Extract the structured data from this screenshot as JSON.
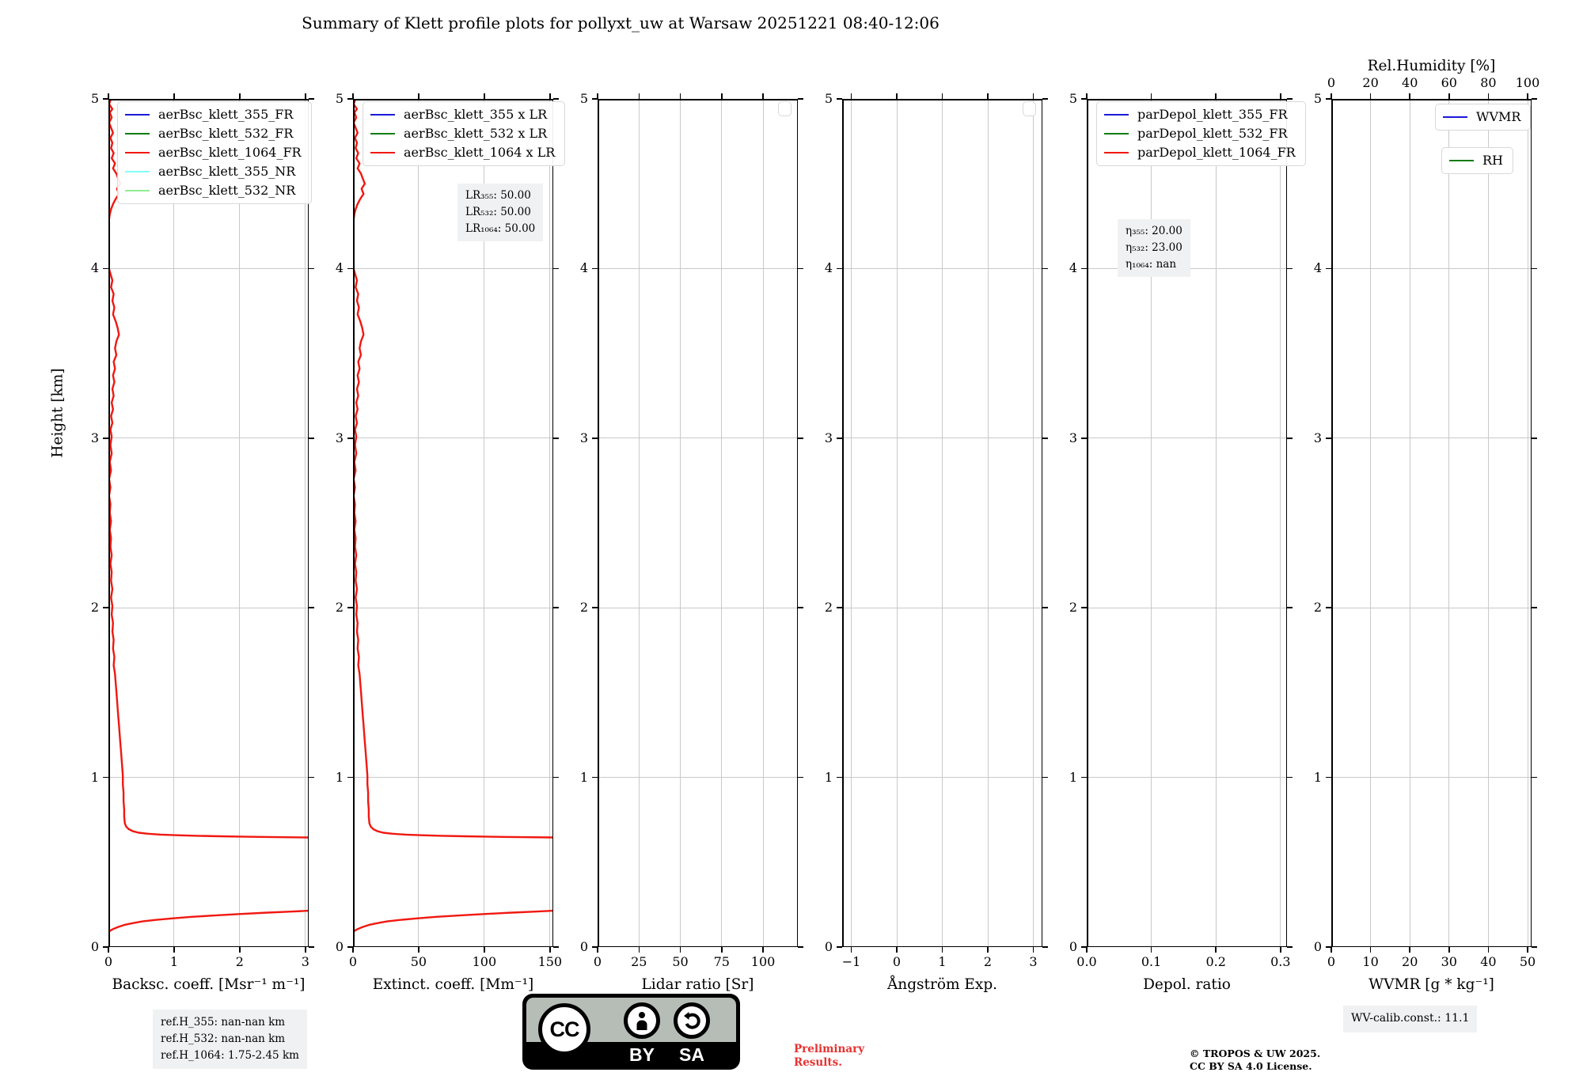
{
  "title": "Summary of Klett profile plots for pollyxt_uw at Warsaw 20251221 08:40-12:06",
  "y_axis": {
    "label": "Height [km]",
    "lim": [
      0,
      5
    ],
    "ticks": [
      0,
      1,
      2,
      3,
      4,
      5
    ]
  },
  "profiles": {
    "aerBsc_klett_1064_FR": {
      "units": "Msr-1 m-1",
      "upper": [
        [
          0.04,
          5.0
        ],
        [
          0.01,
          4.97
        ],
        [
          0.06,
          4.94
        ],
        [
          0.02,
          4.92
        ],
        [
          0.05,
          4.89
        ],
        [
          0.01,
          4.86
        ],
        [
          0.04,
          4.83
        ],
        [
          0.07,
          4.8
        ],
        [
          0.03,
          4.77
        ],
        [
          0.06,
          4.74
        ],
        [
          0.04,
          4.71
        ],
        [
          0.08,
          4.68
        ],
        [
          0.05,
          4.65
        ],
        [
          0.1,
          4.62
        ],
        [
          0.07,
          4.59
        ],
        [
          0.12,
          4.56
        ],
        [
          0.15,
          4.53
        ],
        [
          0.18,
          4.5
        ],
        [
          0.13,
          4.47
        ],
        [
          0.16,
          4.44
        ],
        [
          0.11,
          4.41
        ],
        [
          0.07,
          4.38
        ],
        [
          0.04,
          4.35
        ],
        [
          0.02,
          4.32
        ],
        [
          0.01,
          4.29
        ],
        [
          0.0,
          4.25
        ],
        [
          0.01,
          4.19
        ],
        [
          0.0,
          4.13
        ],
        [
          0.01,
          4.07
        ],
        [
          0.0,
          4.01
        ],
        [
          0.03,
          3.97
        ],
        [
          0.06,
          3.93
        ],
        [
          0.04,
          3.89
        ],
        [
          0.08,
          3.85
        ],
        [
          0.06,
          3.81
        ],
        [
          0.09,
          3.77
        ],
        [
          0.07,
          3.73
        ],
        [
          0.11,
          3.69
        ],
        [
          0.14,
          3.65
        ],
        [
          0.16,
          3.61
        ],
        [
          0.12,
          3.57
        ],
        [
          0.1,
          3.53
        ],
        [
          0.12,
          3.49
        ],
        [
          0.08,
          3.45
        ],
        [
          0.1,
          3.41
        ],
        [
          0.07,
          3.37
        ],
        [
          0.09,
          3.33
        ],
        [
          0.06,
          3.29
        ],
        [
          0.08,
          3.25
        ],
        [
          0.05,
          3.21
        ],
        [
          0.07,
          3.17
        ],
        [
          0.04,
          3.13
        ],
        [
          0.06,
          3.09
        ],
        [
          0.03,
          3.05
        ],
        [
          0.05,
          3.01
        ],
        [
          0.03,
          2.96
        ],
        [
          0.05,
          2.91
        ],
        [
          0.02,
          2.86
        ],
        [
          0.04,
          2.81
        ],
        [
          0.01,
          2.76
        ],
        [
          0.03,
          2.71
        ],
        [
          0.01,
          2.66
        ],
        [
          0.03,
          2.61
        ],
        [
          0.02,
          2.56
        ],
        [
          0.04,
          2.51
        ],
        [
          0.02,
          2.46
        ],
        [
          0.04,
          2.41
        ],
        [
          0.03,
          2.36
        ],
        [
          0.05,
          2.31
        ],
        [
          0.03,
          2.26
        ],
        [
          0.05,
          2.21
        ],
        [
          0.04,
          2.16
        ],
        [
          0.06,
          2.11
        ],
        [
          0.04,
          2.06
        ],
        [
          0.06,
          2.01
        ],
        [
          0.05,
          1.96
        ],
        [
          0.07,
          1.91
        ],
        [
          0.06,
          1.86
        ],
        [
          0.08,
          1.81
        ],
        [
          0.07,
          1.76
        ],
        [
          0.09,
          1.71
        ],
        [
          0.08,
          1.66
        ],
        [
          0.1,
          1.61
        ],
        [
          0.11,
          1.56
        ],
        [
          0.12,
          1.51
        ],
        [
          0.13,
          1.46
        ],
        [
          0.14,
          1.41
        ],
        [
          0.15,
          1.36
        ],
        [
          0.16,
          1.31
        ],
        [
          0.17,
          1.26
        ],
        [
          0.18,
          1.21
        ],
        [
          0.19,
          1.16
        ],
        [
          0.2,
          1.11
        ],
        [
          0.21,
          1.06
        ],
        [
          0.22,
          1.01
        ],
        [
          0.22,
          0.96
        ],
        [
          0.23,
          0.91
        ],
        [
          0.23,
          0.86
        ],
        [
          0.24,
          0.81
        ],
        [
          0.24,
          0.77
        ],
        [
          0.25,
          0.73
        ],
        [
          0.27,
          0.71
        ],
        [
          0.31,
          0.695
        ],
        [
          0.37,
          0.683
        ],
        [
          0.46,
          0.674
        ],
        [
          0.6,
          0.668
        ],
        [
          0.8,
          0.663
        ],
        [
          1.05,
          0.659
        ],
        [
          1.35,
          0.656
        ],
        [
          1.7,
          0.653
        ],
        [
          2.1,
          0.65
        ],
        [
          2.55,
          0.648
        ],
        [
          3.05,
          0.646
        ]
      ],
      "lower": [
        [
          0.0,
          0.09
        ],
        [
          0.06,
          0.104
        ],
        [
          0.14,
          0.117
        ],
        [
          0.24,
          0.13
        ],
        [
          0.37,
          0.141
        ],
        [
          0.52,
          0.151
        ],
        [
          0.72,
          0.16
        ],
        [
          0.97,
          0.169
        ],
        [
          1.27,
          0.178
        ],
        [
          1.62,
          0.186
        ],
        [
          2.02,
          0.195
        ],
        [
          2.42,
          0.203
        ],
        [
          2.78,
          0.209
        ],
        [
          3.05,
          0.214
        ]
      ]
    }
  },
  "chart_data": [
    {
      "name": "subplot-backscatter",
      "type": "line",
      "xlabel": "Backsc. coeff. [Msr⁻¹ m⁻¹]",
      "xlim": [
        0,
        3.05
      ],
      "xticks": [
        "0",
        "1",
        "2",
        "3"
      ],
      "xtick_vals": [
        0,
        1,
        2,
        3
      ],
      "ylim": [
        0,
        5
      ],
      "grid": true,
      "legends": [
        {
          "x": 11,
          "y": 3,
          "entries": [
            {
              "label": "aerBsc_klett_355_FR",
              "color": "#1a1ad9"
            },
            {
              "label": "aerBsc_klett_532_FR",
              "color": "#0f7d0f"
            },
            {
              "label": "aerBsc_klett_1064_FR",
              "color": "#f01810"
            },
            {
              "label": "aerBsc_klett_355_NR",
              "color": "#84ffff"
            },
            {
              "label": "aerBsc_klett_532_NR",
              "color": "#90ee90"
            }
          ]
        }
      ],
      "annotations": [],
      "series": [
        {
          "name": "aerBsc_klett_1064_FR",
          "color": "#f01810",
          "source": "aerBsc_klett_1064_FR",
          "scale": 1
        }
      ]
    },
    {
      "name": "subplot-extinction",
      "type": "line",
      "xlabel": "Extinct. coeff. [Mm⁻¹]",
      "xlim": [
        0,
        152.5
      ],
      "xticks": [
        "0",
        "50",
        "100",
        "150"
      ],
      "xtick_vals": [
        0,
        50,
        100,
        150
      ],
      "ylim": [
        0,
        5
      ],
      "grid": true,
      "legends": [
        {
          "x": 12,
          "y": 3,
          "entries": [
            {
              "label": "aerBsc_klett_355 x LR",
              "color": "#1a1ad9"
            },
            {
              "label": "aerBsc_klett_532 x LR",
              "color": "#0f7d0f"
            },
            {
              "label": "aerBsc_klett_1064 x LR",
              "color": "#f01810"
            }
          ]
        }
      ],
      "annotations": [
        {
          "x": 132,
          "y": 107,
          "lines": [
            "LR₃₅₅: 50.00",
            "LR₅₃₂: 50.00",
            "LR₁₀₆₄: 50.00"
          ]
        }
      ],
      "series": [
        {
          "name": "aerBsc_klett_1064 x LR",
          "color": "#f01810",
          "source": "aerBsc_klett_1064_FR",
          "scale": 50
        }
      ]
    },
    {
      "name": "subplot-lidar-ratio",
      "type": "line",
      "xlabel": "Lidar ratio [Sr]",
      "xlim": [
        0,
        121
      ],
      "xticks": [
        "0",
        "25",
        "50",
        "75",
        "100"
      ],
      "xtick_vals": [
        0,
        25,
        50,
        75,
        100
      ],
      "ylim": [
        0,
        5
      ],
      "grid": true,
      "legends": [
        {
          "x": 228,
          "y": 3,
          "w": 15,
          "h": 17,
          "entries": []
        }
      ],
      "annotations": [],
      "series": []
    },
    {
      "name": "subplot-angstrom",
      "type": "line",
      "xlabel": "Ångström Exp.",
      "xlim": [
        -1.2,
        3.2
      ],
      "xticks": [
        "−1",
        "0",
        "1",
        "2",
        "3"
      ],
      "xtick_vals": [
        -1,
        0,
        1,
        2,
        3
      ],
      "ylim": [
        0,
        5
      ],
      "grid": true,
      "legends": [
        {
          "x": 228,
          "y": 3,
          "w": 15,
          "h": 17,
          "entries": []
        }
      ],
      "annotations": [],
      "series": []
    },
    {
      "name": "subplot-depol",
      "type": "line",
      "xlabel": "Depol. ratio",
      "xlim": [
        0,
        0.31
      ],
      "xticks": [
        "0.0",
        "0.1",
        "0.2",
        "0.3"
      ],
      "xtick_vals": [
        0,
        0.1,
        0.2,
        0.3
      ],
      "ylim": [
        0,
        5
      ],
      "grid": true,
      "legends": [
        {
          "x": 12,
          "y": 3,
          "entries": [
            {
              "label": "parDepol_klett_355_FR",
              "color": "#1a1ad9"
            },
            {
              "label": "parDepol_klett_532_FR",
              "color": "#0f7d0f"
            },
            {
              "label": "parDepol_klett_1064_FR",
              "color": "#f01810"
            }
          ]
        }
      ],
      "annotations": [
        {
          "x": 39,
          "y": 152,
          "lines": [
            "η₃₅₅: 20.00",
            "η₅₃₂: 23.00",
            "η₁₀₆₄: nan"
          ]
        }
      ],
      "series": []
    },
    {
      "name": "subplot-wvmr",
      "type": "line",
      "xlabel": "WVMR [g * kg⁻¹]",
      "xlim": [
        0,
        51
      ],
      "xticks": [
        "0",
        "10",
        "20",
        "30",
        "40",
        "50"
      ],
      "xtick_vals": [
        0,
        10,
        20,
        30,
        40,
        50
      ],
      "ylim": [
        0,
        5
      ],
      "grid": true,
      "top_axis": {
        "label": "Rel.Humidity [%]",
        "xlim": [
          0,
          102
        ],
        "ticks": [
          "0",
          "20",
          "40",
          "60",
          "80",
          "100"
        ],
        "tick_vals": [
          0,
          20,
          40,
          60,
          80,
          100
        ]
      },
      "legends": [
        {
          "x": 131,
          "y": 6,
          "entries": [
            {
              "label": "WVMR",
              "color": "#1a1ad9"
            }
          ]
        },
        {
          "x": 139,
          "y": 61,
          "entries": [
            {
              "label": "RH",
              "color": "#0f7d0f"
            }
          ]
        }
      ],
      "annotations": [],
      "series": []
    }
  ],
  "footer": {
    "ref_h_lines": [
      "ref.H_355: nan-nan km",
      "ref.H_532: nan-nan km",
      "ref.H_1064: 1.75-2.45 km"
    ],
    "cc": {
      "cc": "CC",
      "by": "BY",
      "sa": "SA"
    },
    "preliminary": [
      "Preliminary",
      "Results."
    ],
    "copyright": [
      "© TROPOS & UW 2025.",
      "CC BY SA 4.0 License."
    ],
    "wv_calib": "WV-calib.const.: 11.1"
  }
}
